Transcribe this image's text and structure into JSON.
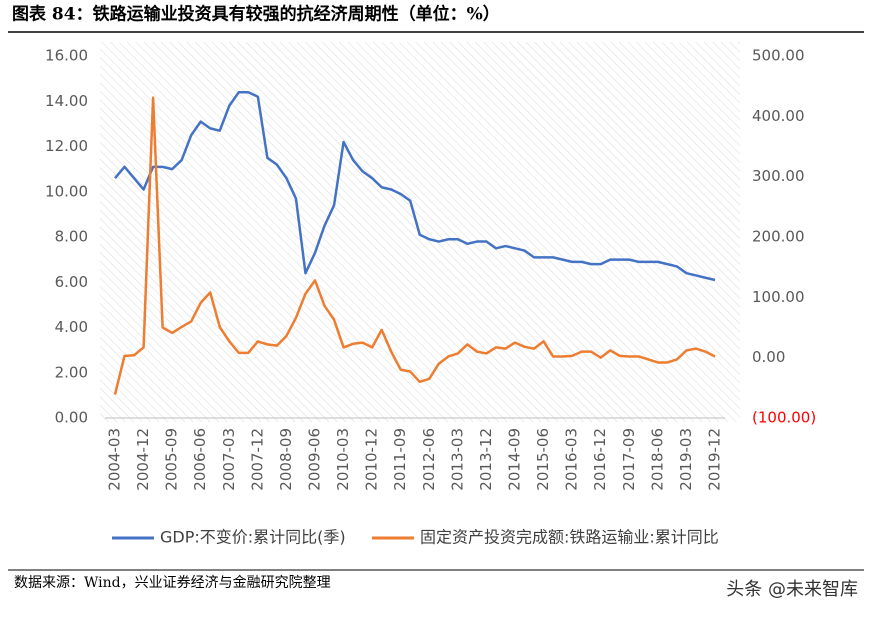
{
  "chart_data": {
    "type": "line",
    "title": "图表 84：铁路运输业投资具有较强的抗经济周期性（单位：%）",
    "categories": [
      "2004-03",
      null,
      null,
      "2004-12",
      null,
      null,
      "2005-09",
      null,
      null,
      "2006-06",
      null,
      null,
      "2007-03",
      null,
      null,
      "2007-12",
      null,
      null,
      "2008-09",
      null,
      null,
      "2009-06",
      null,
      null,
      "2010-03",
      null,
      null,
      "2010-12",
      null,
      null,
      "2011-09",
      null,
      null,
      "2012-06",
      null,
      null,
      "2013-03",
      null,
      null,
      "2013-12",
      null,
      null,
      "2014-09",
      null,
      null,
      "2015-06",
      null,
      null,
      "2016-03",
      null,
      null,
      "2016-12",
      null,
      null,
      "2017-09",
      null,
      null,
      "2018-06",
      null,
      null,
      "2019-03",
      null,
      null,
      "2019-12"
    ],
    "series": [
      {
        "name": "GDP:不变价:累计同比(季)",
        "color": "#4472c4",
        "values": [
          10.6,
          11.1,
          10.6,
          10.1,
          11.1,
          11.1,
          11.0,
          11.4,
          12.5,
          13.1,
          12.8,
          12.7,
          13.8,
          14.4,
          14.4,
          14.2,
          11.5,
          11.2,
          10.6,
          9.7,
          6.4,
          7.3,
          8.5,
          9.4,
          12.2,
          11.4,
          10.9,
          10.6,
          10.2,
          10.1,
          9.9,
          9.6,
          8.1,
          7.9,
          7.8,
          7.9,
          7.9,
          7.7,
          7.8,
          7.8,
          7.5,
          7.6,
          7.5,
          7.4,
          7.1,
          7.1,
          7.1,
          7.0,
          6.9,
          6.9,
          6.8,
          6.8,
          7.0,
          7.0,
          7.0,
          6.9,
          6.9,
          6.9,
          6.8,
          6.7,
          6.4,
          6.3,
          6.2,
          6.1
        ]
      },
      {
        "name": "固定资产投资完成额:铁路运输业:累计同比",
        "color": "#ed7d31",
        "axis": "y2",
        "values": [
          -61,
          3,
          4,
          17,
          431,
          50,
          41,
          51,
          60,
          91,
          108,
          51,
          27,
          8,
          8,
          27,
          22,
          20,
          36,
          66,
          106,
          128,
          86,
          63,
          17,
          23,
          25,
          17,
          46,
          10,
          -20,
          -23,
          -40,
          -35,
          -10,
          2,
          7,
          22,
          10,
          7,
          17,
          15,
          25,
          18,
          15,
          27,
          2,
          2,
          3,
          10,
          10,
          0,
          12,
          3,
          2,
          2,
          -3,
          -8,
          -8,
          -3,
          12,
          15,
          10,
          2
        ]
      }
    ],
    "ylim": [
      0,
      16
    ],
    "yticks": [
      {
        "value": 0,
        "label": "0.00"
      },
      {
        "value": 2,
        "label": "2.00"
      },
      {
        "value": 4,
        "label": "4.00"
      },
      {
        "value": 6,
        "label": "6.00"
      },
      {
        "value": 8,
        "label": "8.00"
      },
      {
        "value": 10,
        "label": "10.00"
      },
      {
        "value": 12,
        "label": "12.00"
      },
      {
        "value": 14,
        "label": "14.00"
      },
      {
        "value": 16,
        "label": "16.00"
      }
    ],
    "y2lim": [
      -100,
      500
    ],
    "y2ticks": [
      {
        "value": -100,
        "label": "(100.00)"
      },
      {
        "value": 0,
        "label": "0.00"
      },
      {
        "value": 100,
        "label": "100.00"
      },
      {
        "value": 200,
        "label": "200.00"
      },
      {
        "value": 300,
        "label": "300.00"
      },
      {
        "value": 400,
        "label": "400.00"
      },
      {
        "value": 500,
        "label": "500.00"
      }
    ],
    "source": "数据来源：Wind，兴业证券经济与金融研究院整理"
  },
  "watermark": "头条 @未来智库"
}
